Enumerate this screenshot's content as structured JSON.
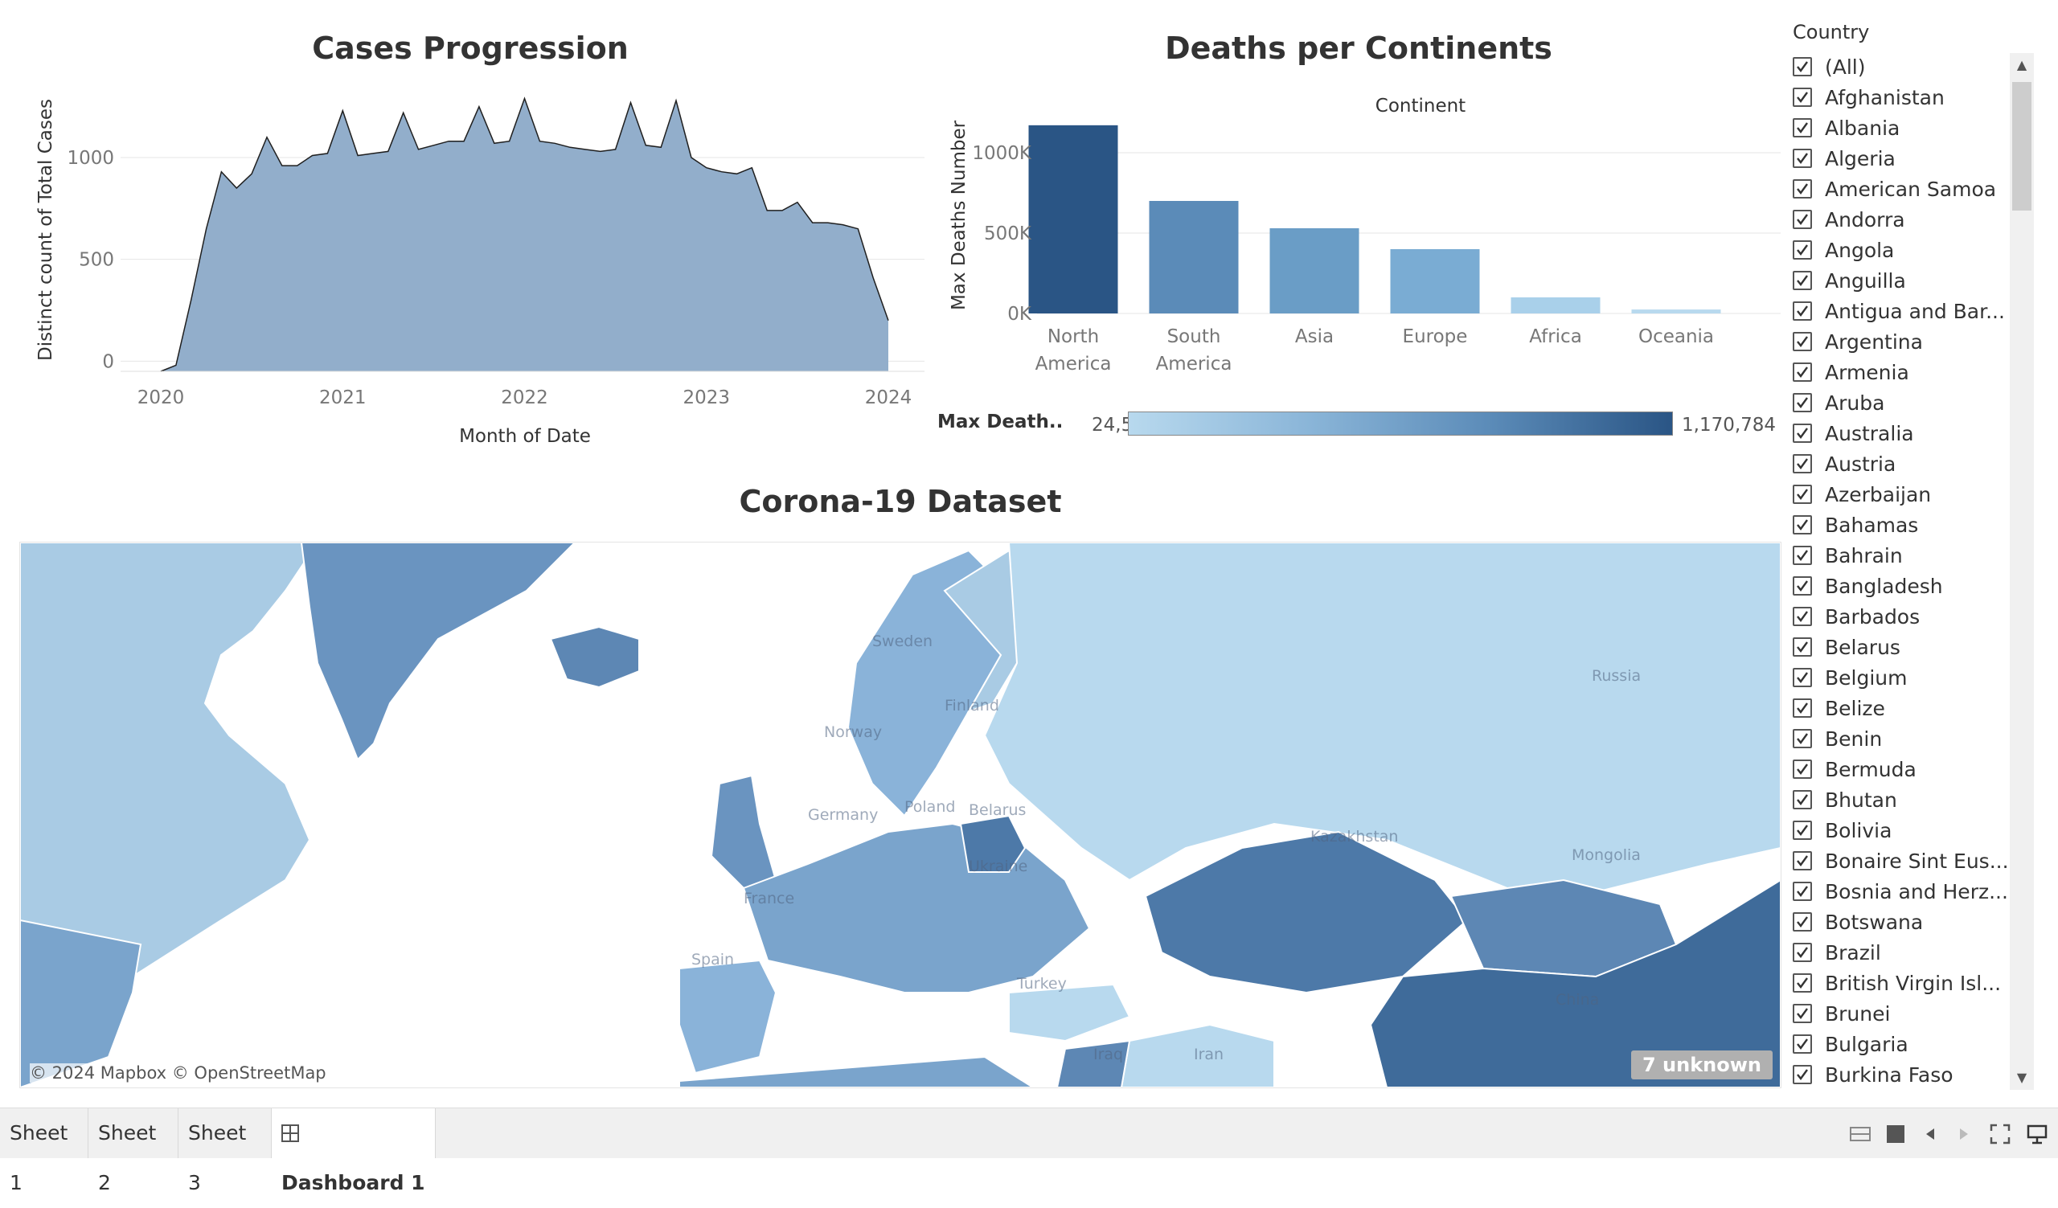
{
  "dashboard": {
    "cases_title": "Cases Progression",
    "deaths_title": "Deaths per Continents",
    "map_title": "Corona-19 Dataset"
  },
  "chart_data": [
    {
      "type": "area",
      "title": "Cases Progression",
      "xlabel": "Month of Date",
      "ylabel": "Distinct count of Total Cases",
      "x_ticks": [
        "2020",
        "2021",
        "2022",
        "2023",
        "2024"
      ],
      "y_ticks": [
        0,
        500,
        1000
      ],
      "ylim": [
        -50,
        1300
      ],
      "grid": true,
      "x": [
        "2020-01",
        "2020-02",
        "2020-03",
        "2020-04",
        "2020-05",
        "2020-06",
        "2020-07",
        "2020-08",
        "2020-09",
        "2020-10",
        "2020-11",
        "2020-12",
        "2021-01",
        "2021-02",
        "2021-03",
        "2021-04",
        "2021-05",
        "2021-06",
        "2021-07",
        "2021-08",
        "2021-09",
        "2021-10",
        "2021-11",
        "2021-12",
        "2022-01",
        "2022-02",
        "2022-03",
        "2022-04",
        "2022-05",
        "2022-06",
        "2022-07",
        "2022-08",
        "2022-09",
        "2022-10",
        "2022-11",
        "2022-12",
        "2023-01",
        "2023-02",
        "2023-03",
        "2023-04",
        "2023-05",
        "2023-06",
        "2023-07",
        "2023-08",
        "2023-09",
        "2023-10",
        "2023-11",
        "2023-12",
        "2024-01"
      ],
      "values": [
        -50,
        -20,
        300,
        650,
        930,
        850,
        920,
        1100,
        960,
        960,
        1010,
        1020,
        1230,
        1010,
        1020,
        1030,
        1220,
        1040,
        1060,
        1080,
        1080,
        1250,
        1070,
        1080,
        1290,
        1080,
        1070,
        1050,
        1040,
        1030,
        1040,
        1270,
        1060,
        1050,
        1280,
        1000,
        950,
        930,
        920,
        950,
        740,
        740,
        780,
        680,
        680,
        670,
        650,
        410,
        200
      ]
    },
    {
      "type": "bar",
      "title": "Deaths per Continents",
      "header": "Continent",
      "ylabel": "Max Deaths Number",
      "categories": [
        "North America",
        "South America",
        "Asia",
        "Europe",
        "Africa",
        "Oceania"
      ],
      "values": [
        1170784,
        700000,
        530000,
        400000,
        100000,
        24566
      ],
      "colors": [
        "#2a5585",
        "#5b8bb8",
        "#6a9dc6",
        "#7aacd3",
        "#a9d0ea",
        "#b8d9ee"
      ],
      "y_ticks": [
        0,
        500000,
        1000000
      ],
      "y_tick_labels": [
        "0K",
        "500K",
        "1000K"
      ],
      "ylim": [
        0,
        1200000
      ],
      "grid": true
    }
  ],
  "legend": {
    "label": "Max Death..",
    "min": "24,566",
    "max": "1,170,784"
  },
  "map": {
    "credit": "© 2024 Mapbox © OpenStreetMap",
    "unknown_badge": "7 unknown",
    "labels": [
      "Sweden",
      "Finland",
      "Norway",
      "Russia",
      "Belarus",
      "Germany",
      "Poland",
      "Ukraine",
      "France",
      "Kazakhstan",
      "Mongolia",
      "Spain",
      "Turkey",
      "Iraq",
      "Iran",
      "China"
    ]
  },
  "filter": {
    "title": "Country",
    "items": [
      "(All)",
      "Afghanistan",
      "Albania",
      "Algeria",
      "American Samoa",
      "Andorra",
      "Angola",
      "Anguilla",
      "Antigua and Bar...",
      "Argentina",
      "Armenia",
      "Aruba",
      "Australia",
      "Austria",
      "Azerbaijan",
      "Bahamas",
      "Bahrain",
      "Bangladesh",
      "Barbados",
      "Belarus",
      "Belgium",
      "Belize",
      "Benin",
      "Bermuda",
      "Bhutan",
      "Bolivia",
      "Bonaire Sint Eus...",
      "Bosnia and Herz...",
      "Botswana",
      "Brazil",
      "British Virgin Isl...",
      "Brunei",
      "Bulgaria",
      "Burkina Faso"
    ]
  },
  "tabs": [
    "Sheet 1",
    "Sheet 2",
    "Sheet 3",
    "Dashboard 1"
  ],
  "colors": {
    "area_fill": "#92aecb",
    "area_line": "#1f1f1f"
  }
}
